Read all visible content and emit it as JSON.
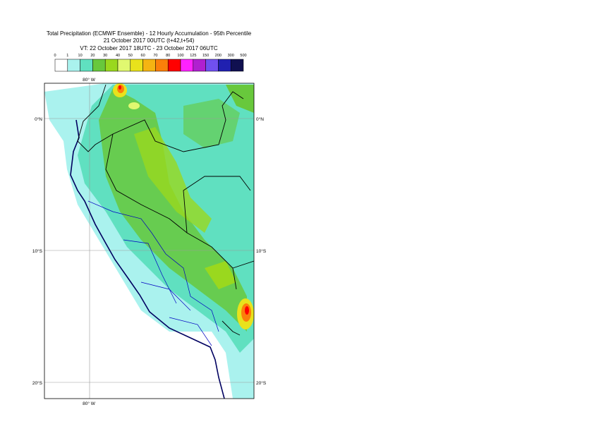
{
  "header": {
    "title": "Total Precipitation (ECMWF Ensemble) - 12 Hourly Accumulation - 95th Percentile",
    "base_time": "21 October 2017 00UTC (t+42,t+54)",
    "valid_time": "VT: 22 October 2017 18UTC - 23 October 2017 06UTC"
  },
  "legend": {
    "labels": [
      0,
      1,
      10,
      20,
      30,
      40,
      50,
      60,
      70,
      80,
      100,
      125,
      150,
      200,
      300,
      500
    ],
    "colors": [
      "#ffffff",
      "#aaf2ee",
      "#60e0c0",
      "#68c83c",
      "#9ad81e",
      "#e0f870",
      "#e8e21c",
      "#f5b412",
      "#fb7f0a",
      "#ff0000",
      "#ff22ff",
      "#b020d0",
      "#7050f0",
      "#2020b0",
      "#101050"
    ]
  },
  "map": {
    "lon_label_top": "80° W",
    "lon_label_bottom": "80° W",
    "lat_labels": [
      "0°N",
      "10°S",
      "20°S"
    ]
  }
}
